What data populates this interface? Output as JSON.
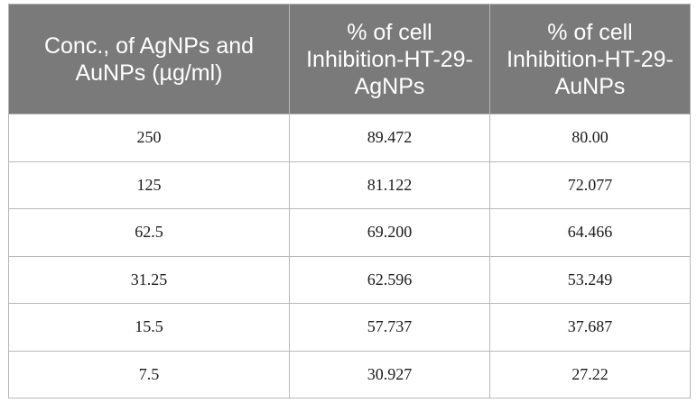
{
  "table": {
    "headers": [
      "Conc., of AgNPs and AuNPs (µg/ml)",
      "% of cell Inhibition-HT-29-AgNPs",
      "% of cell Inhibition-HT-29-AuNPs"
    ],
    "rows": [
      [
        "250",
        "89.472",
        "80.00"
      ],
      [
        "125",
        "81.122",
        "72.077"
      ],
      [
        "62.5",
        "69.200",
        "64.466"
      ],
      [
        "31.25",
        "62.596",
        "53.249"
      ],
      [
        "15.5",
        "57.737",
        "37.687"
      ],
      [
        "7.5",
        "30.927",
        "27.22"
      ]
    ]
  },
  "colors": {
    "header_background": "#7a7a7a",
    "header_text": "#ffffff",
    "border": "#b9b9b9"
  }
}
